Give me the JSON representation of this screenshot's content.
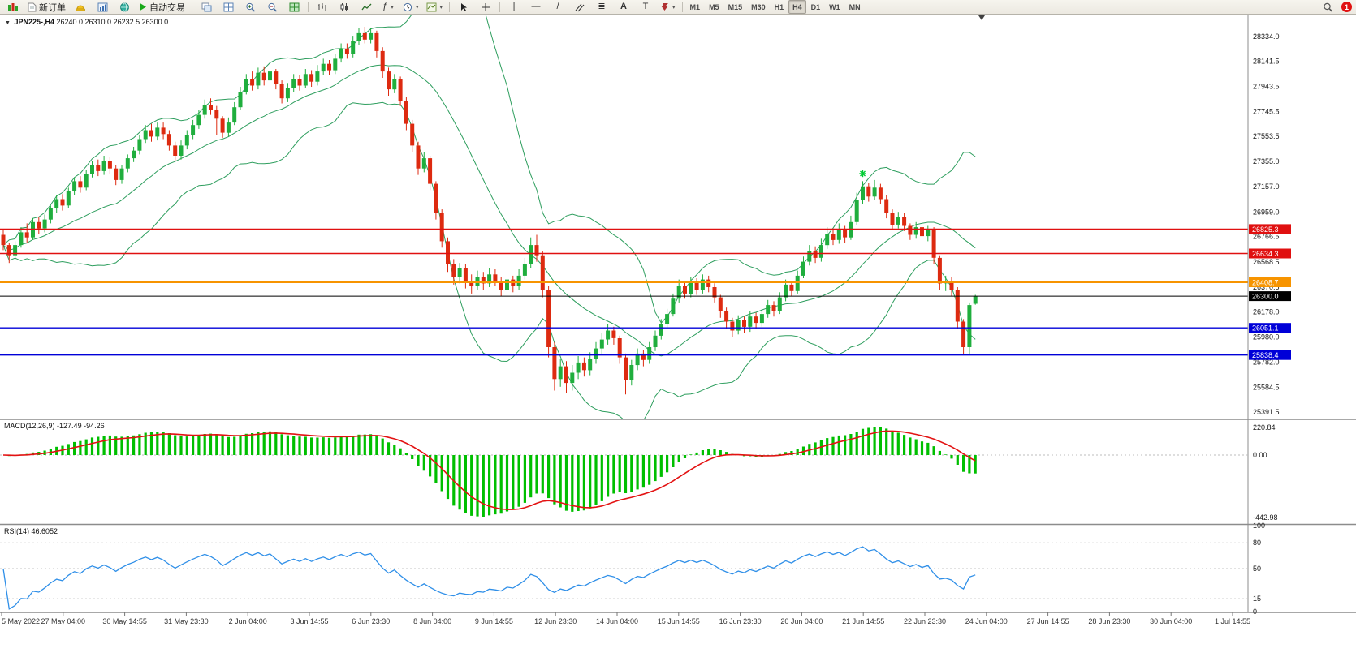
{
  "toolbar": {
    "new_order_label": "新订单",
    "autotrade_label": "自动交易",
    "timeframes": [
      "M1",
      "M5",
      "M15",
      "M30",
      "H1",
      "H4",
      "D1",
      "W1",
      "MN"
    ],
    "active_timeframe": "H4",
    "notification_count": "1"
  },
  "chart_header": {
    "symbol_period": "JPN225-,H4",
    "ohlc_text": "26240.0 26310.0 26232.5 26300.0"
  },
  "macd_panel": {
    "label": "MACD(12,26,9)",
    "values_text": "-127.49 -94.26",
    "axis_labels": [
      "220.84",
      "0.00",
      "-442.98"
    ],
    "histogram_color": "#00bf00",
    "signal_color": "#e31212"
  },
  "rsi_panel": {
    "label": "RSI(14)",
    "value_text": "46.6052",
    "axis_labels": [
      "100",
      "80",
      "50",
      "15",
      "0"
    ],
    "level_values": [
      80,
      50,
      15
    ],
    "line_color": "#2f8fe8"
  },
  "price_axis": {
    "labels": [
      "28334.0",
      "28141.5",
      "27943.5",
      "27745.5",
      "27553.5",
      "27355.0",
      "27157.0",
      "26959.0",
      "26766.5",
      "26568.5",
      "26370.5",
      "26178.0",
      "25980.0",
      "25782.0",
      "25584.5",
      "25391.5"
    ]
  },
  "levels": [
    {
      "label": "26825.3",
      "price": 26825.3,
      "color": "#e01010",
      "width": 1.4
    },
    {
      "label": "26634.3",
      "price": 26634.3,
      "color": "#e01010",
      "width": 1.4
    },
    {
      "label": "26408.7",
      "price": 26408.7,
      "color": "#f79400",
      "width": 2
    },
    {
      "label": "26300.0",
      "price": 26300.0,
      "color": "#000000",
      "width": 1
    },
    {
      "label": "26051.1",
      "price": 26051.1,
      "color": "#0000d8",
      "width": 1.4
    },
    {
      "label": "25838.4",
      "price": 25838.4,
      "color": "#0000d8",
      "width": 1.4
    }
  ],
  "marker": {
    "type": "buy-star",
    "bar": 145,
    "price": 27260,
    "color": "#00cc33"
  },
  "candle_colors": {
    "up": "#1fae3d",
    "down": "#dd2a10"
  },
  "bollinger_color": "#2e9e5e",
  "chart_data": {
    "type": "candlestick",
    "symbol": "JPN225-",
    "timeframe": "H4",
    "last_bar": {
      "open": 26240.0,
      "high": 26310.0,
      "low": 26232.5,
      "close": 26300.0
    },
    "overlays": [
      {
        "name": "Bollinger Bands",
        "period": 20,
        "deviation": 2
      }
    ],
    "indicator_panels": [
      {
        "name": "MACD",
        "params": [
          12,
          26,
          9
        ],
        "current_values": [
          -127.49,
          -94.26
        ],
        "axis": [
          220.84,
          0.0,
          -442.98
        ]
      },
      {
        "name": "RSI",
        "params": [
          14
        ],
        "current_value": 46.6052,
        "axis": [
          100,
          80,
          50,
          15,
          0
        ]
      }
    ],
    "horizontal_lines": [
      26825.3,
      26634.3,
      26408.7,
      26300.0,
      26051.1,
      25838.4
    ],
    "time_labels": [
      "5 May 2022",
      "27 May 04:00",
      "30 May 14:55",
      "31 May 23:30",
      "2 Jun 04:00",
      "3 Jun 14:55",
      "6 Jun 23:30",
      "8 Jun 04:00",
      "9 Jun 14:55",
      "12 Jun 23:30",
      "14 Jun 04:00",
      "15 Jun 14:55",
      "16 Jun 23:30",
      "20 Jun 04:00",
      "21 Jun 14:55",
      "22 Jun 23:30",
      "24 Jun 04:00",
      "27 Jun 14:55",
      "28 Jun 23:30",
      "30 Jun 04:00",
      "1 Jul 14:55"
    ],
    "candles": [
      [
        26780,
        26820,
        26660,
        26700
      ],
      [
        26700,
        26720,
        26560,
        26620
      ],
      [
        26620,
        26730,
        26590,
        26700
      ],
      [
        26700,
        26840,
        26680,
        26800
      ],
      [
        26800,
        26870,
        26720,
        26760
      ],
      [
        26760,
        26910,
        26740,
        26880
      ],
      [
        26880,
        26920,
        26790,
        26830
      ],
      [
        26830,
        26940,
        26800,
        26900
      ],
      [
        26900,
        27010,
        26870,
        26990
      ],
      [
        26990,
        27090,
        26950,
        27060
      ],
      [
        27060,
        27100,
        26970,
        27010
      ],
      [
        27010,
        27150,
        26990,
        27120
      ],
      [
        27120,
        27230,
        27090,
        27200
      ],
      [
        27200,
        27240,
        27110,
        27150
      ],
      [
        27150,
        27290,
        27130,
        27260
      ],
      [
        27260,
        27360,
        27230,
        27330
      ],
      [
        27330,
        27370,
        27240,
        27280
      ],
      [
        27280,
        27400,
        27250,
        27360
      ],
      [
        27360,
        27390,
        27260,
        27300
      ],
      [
        27300,
        27330,
        27170,
        27210
      ],
      [
        27210,
        27330,
        27180,
        27300
      ],
      [
        27300,
        27410,
        27270,
        27380
      ],
      [
        27380,
        27470,
        27350,
        27440
      ],
      [
        27440,
        27560,
        27410,
        27530
      ],
      [
        27530,
        27640,
        27500,
        27600
      ],
      [
        27600,
        27650,
        27510,
        27550
      ],
      [
        27550,
        27660,
        27520,
        27620
      ],
      [
        27620,
        27660,
        27530,
        27570
      ],
      [
        27570,
        27600,
        27440,
        27480
      ],
      [
        27480,
        27510,
        27360,
        27400
      ],
      [
        27400,
        27520,
        27370,
        27480
      ],
      [
        27480,
        27600,
        27450,
        27560
      ],
      [
        27560,
        27680,
        27530,
        27640
      ],
      [
        27640,
        27760,
        27610,
        27720
      ],
      [
        27720,
        27840,
        27690,
        27800
      ],
      [
        27800,
        27850,
        27720,
        27760
      ],
      [
        27760,
        27790,
        27560,
        27690
      ],
      [
        27690,
        27710,
        27540,
        27580
      ],
      [
        27580,
        27700,
        27550,
        27660
      ],
      [
        27660,
        27820,
        27640,
        27780
      ],
      [
        27780,
        27940,
        27760,
        27900
      ],
      [
        27900,
        28040,
        27880,
        28000
      ],
      [
        28000,
        28060,
        27910,
        27950
      ],
      [
        27950,
        28090,
        27920,
        28050
      ],
      [
        28050,
        28100,
        27950,
        27990
      ],
      [
        27990,
        28100,
        27960,
        28060
      ],
      [
        28060,
        28080,
        27920,
        27960
      ],
      [
        27960,
        27990,
        27810,
        27850
      ],
      [
        27850,
        27970,
        27820,
        27930
      ],
      [
        27930,
        28040,
        27900,
        28000
      ],
      [
        28000,
        28030,
        27910,
        27950
      ],
      [
        27950,
        28080,
        27930,
        28040
      ],
      [
        28040,
        28070,
        27940,
        27980
      ],
      [
        27980,
        28110,
        27950,
        28060
      ],
      [
        28060,
        28160,
        28030,
        28120
      ],
      [
        28120,
        28150,
        28030,
        28070
      ],
      [
        28070,
        28200,
        28040,
        28160
      ],
      [
        28160,
        28280,
        28130,
        28240
      ],
      [
        28240,
        28280,
        28160,
        28200
      ],
      [
        28200,
        28340,
        28170,
        28300
      ],
      [
        28300,
        28400,
        28270,
        28360
      ],
      [
        28360,
        28410,
        28280,
        28310
      ],
      [
        28310,
        28400,
        28280,
        28360
      ],
      [
        28360,
        28380,
        28170,
        28220
      ],
      [
        28220,
        28250,
        28010,
        28060
      ],
      [
        28060,
        28090,
        27870,
        27920
      ],
      [
        27920,
        28040,
        27890,
        28000
      ],
      [
        28000,
        28020,
        27790,
        27830
      ],
      [
        27830,
        27860,
        27600,
        27650
      ],
      [
        27650,
        27680,
        27430,
        27480
      ],
      [
        27480,
        27510,
        27250,
        27300
      ],
      [
        27300,
        27430,
        27270,
        27380
      ],
      [
        27380,
        27400,
        27130,
        27180
      ],
      [
        27180,
        27200,
        26900,
        26950
      ],
      [
        26950,
        26980,
        26680,
        26730
      ],
      [
        26730,
        26760,
        26490,
        26550
      ],
      [
        26550,
        26590,
        26390,
        26450
      ],
      [
        26450,
        26560,
        26400,
        26520
      ],
      [
        26520,
        26550,
        26360,
        26420
      ],
      [
        26420,
        26470,
        26320,
        26380
      ],
      [
        26380,
        26500,
        26350,
        26450
      ],
      [
        26450,
        26490,
        26350,
        26400
      ],
      [
        26400,
        26520,
        26370,
        26470
      ],
      [
        26470,
        26510,
        26380,
        26420
      ],
      [
        26420,
        26450,
        26300,
        26350
      ],
      [
        26350,
        26470,
        26310,
        26430
      ],
      [
        26430,
        26460,
        26330,
        26380
      ],
      [
        26380,
        26510,
        26350,
        26460
      ],
      [
        26460,
        26600,
        26430,
        26550
      ],
      [
        26550,
        26760,
        26520,
        26700
      ],
      [
        26700,
        26780,
        26570,
        26620
      ],
      [
        26620,
        26650,
        26290,
        26350
      ],
      [
        26350,
        26380,
        25820,
        25900
      ],
      [
        25900,
        25940,
        25560,
        25650
      ],
      [
        25650,
        25810,
        25590,
        25750
      ],
      [
        25750,
        25790,
        25540,
        25620
      ],
      [
        25620,
        25760,
        25560,
        25700
      ],
      [
        25700,
        25830,
        25650,
        25780
      ],
      [
        25780,
        25820,
        25670,
        25720
      ],
      [
        25720,
        25860,
        25680,
        25810
      ],
      [
        25810,
        25940,
        25770,
        25890
      ],
      [
        25890,
        26010,
        25850,
        25960
      ],
      [
        25960,
        26080,
        25920,
        26030
      ],
      [
        26030,
        26060,
        25920,
        25970
      ],
      [
        25970,
        25990,
        25770,
        25820
      ],
      [
        25820,
        25850,
        25530,
        25640
      ],
      [
        25640,
        25800,
        25600,
        25760
      ],
      [
        25760,
        25890,
        25720,
        25850
      ],
      [
        25850,
        25880,
        25750,
        25800
      ],
      [
        25800,
        25940,
        25770,
        25900
      ],
      [
        25900,
        26030,
        25870,
        25990
      ],
      [
        25990,
        26120,
        25960,
        26080
      ],
      [
        26080,
        26200,
        26050,
        26160
      ],
      [
        26160,
        26320,
        26140,
        26280
      ],
      [
        26280,
        26430,
        26250,
        26380
      ],
      [
        26380,
        26410,
        26280,
        26320
      ],
      [
        26320,
        26450,
        26290,
        26410
      ],
      [
        26410,
        26440,
        26310,
        26350
      ],
      [
        26350,
        26470,
        26320,
        26430
      ],
      [
        26430,
        26460,
        26330,
        26370
      ],
      [
        26370,
        26400,
        26250,
        26290
      ],
      [
        26290,
        26310,
        26130,
        26180
      ],
      [
        26180,
        26210,
        26040,
        26100
      ],
      [
        26100,
        26130,
        25980,
        26030
      ],
      [
        26030,
        26150,
        26000,
        26110
      ],
      [
        26110,
        26140,
        26010,
        26060
      ],
      [
        26060,
        26180,
        26020,
        26140
      ],
      [
        26140,
        26170,
        26040,
        26090
      ],
      [
        26090,
        26200,
        26060,
        26160
      ],
      [
        26160,
        26270,
        26130,
        26230
      ],
      [
        26230,
        26260,
        26140,
        26180
      ],
      [
        26180,
        26330,
        26160,
        26290
      ],
      [
        26290,
        26430,
        26260,
        26390
      ],
      [
        26390,
        26420,
        26300,
        26340
      ],
      [
        26340,
        26500,
        26320,
        26460
      ],
      [
        26460,
        26610,
        26440,
        26570
      ],
      [
        26570,
        26700,
        26540,
        26650
      ],
      [
        26650,
        26690,
        26560,
        26600
      ],
      [
        26600,
        26750,
        26570,
        26700
      ],
      [
        26700,
        26840,
        26670,
        26790
      ],
      [
        26790,
        26830,
        26700,
        26740
      ],
      [
        26740,
        26870,
        26710,
        26820
      ],
      [
        26820,
        26850,
        26720,
        26760
      ],
      [
        26760,
        26930,
        26740,
        26880
      ],
      [
        26880,
        27110,
        26860,
        27050
      ],
      [
        27050,
        27200,
        27020,
        27160
      ],
      [
        27160,
        27190,
        27040,
        27080
      ],
      [
        27080,
        27210,
        27050,
        27150
      ],
      [
        27150,
        27180,
        27020,
        27060
      ],
      [
        27060,
        27090,
        26910,
        26950
      ],
      [
        26950,
        26980,
        26820,
        26860
      ],
      [
        26860,
        26960,
        26830,
        26920
      ],
      [
        26920,
        26950,
        26810,
        26850
      ],
      [
        26850,
        26870,
        26740,
        26780
      ],
      [
        26780,
        26880,
        26750,
        26840
      ],
      [
        26840,
        26860,
        26730,
        26770
      ],
      [
        26770,
        26850,
        26730,
        26820
      ],
      [
        26820,
        26840,
        26550,
        26600
      ],
      [
        26600,
        26620,
        26350,
        26400
      ],
      [
        26400,
        26460,
        26340,
        26420
      ],
      [
        26420,
        26450,
        26300,
        26350
      ],
      [
        26350,
        26370,
        26040,
        26100
      ],
      [
        26100,
        26120,
        25840,
        25900
      ],
      [
        25900,
        26250,
        25845,
        26230
      ],
      [
        26240,
        26310,
        26232.5,
        26300
      ]
    ]
  }
}
